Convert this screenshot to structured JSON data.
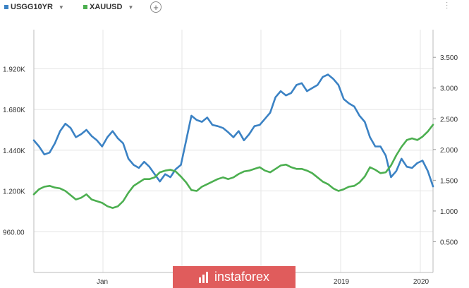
{
  "legend": {
    "series1": {
      "label": "USGG10YR",
      "color": "#3b82c4"
    },
    "series2": {
      "label": "XAUUSD",
      "color": "#4caf50"
    },
    "add_icon": "plus-circle-icon",
    "menu_icon": "vertical-dots-icon"
  },
  "watermark": {
    "text": "instaforex",
    "color": "#e05c5c"
  },
  "chart_data": {
    "type": "line",
    "x_tick_labels": [
      "Jan",
      "2019",
      "2020"
    ],
    "left_axis": {
      "series": "XAUUSD",
      "ticks": [
        "960.00",
        "1.200K",
        "1.440K",
        "1.680K",
        "1.920K"
      ],
      "values": [
        960,
        1200,
        1440,
        1680,
        1920
      ],
      "range": [
        720,
        2150
      ]
    },
    "right_axis": {
      "series": "USGG10YR",
      "ticks": [
        "0.500",
        "1.000",
        "1.500",
        "2.000",
        "2.500",
        "3.000",
        "3.500"
      ],
      "values": [
        0.5,
        1.0,
        1.5,
        2.0,
        2.5,
        3.0,
        3.5
      ],
      "range": [
        0.0,
        3.95
      ]
    },
    "grid": true,
    "series": [
      {
        "name": "USGG10YR",
        "axis": "right",
        "color": "#3b82c4",
        "values": [
          2.15,
          2.05,
          1.92,
          1.95,
          2.1,
          2.3,
          2.42,
          2.35,
          2.2,
          2.25,
          2.32,
          2.22,
          2.15,
          2.05,
          2.2,
          2.3,
          2.18,
          2.1,
          1.85,
          1.75,
          1.7,
          1.8,
          1.72,
          1.6,
          1.48,
          1.6,
          1.55,
          1.68,
          1.75,
          2.15,
          2.55,
          2.48,
          2.45,
          2.52,
          2.4,
          2.38,
          2.35,
          2.28,
          2.2,
          2.3,
          2.15,
          2.25,
          2.38,
          2.4,
          2.5,
          2.6,
          2.85,
          2.95,
          2.88,
          2.92,
          3.05,
          3.08,
          2.95,
          3.0,
          3.05,
          3.18,
          3.22,
          3.15,
          3.05,
          2.82,
          2.75,
          2.7,
          2.55,
          2.45,
          2.2,
          2.05,
          2.05,
          1.9,
          1.55,
          1.65,
          1.85,
          1.72,
          1.7,
          1.78,
          1.82,
          1.65,
          1.4
        ]
      },
      {
        "name": "XAUUSD",
        "axis": "left",
        "color": "#4caf50",
        "values": [
          1180,
          1210,
          1225,
          1230,
          1220,
          1215,
          1200,
          1175,
          1150,
          1160,
          1180,
          1150,
          1140,
          1130,
          1110,
          1100,
          1110,
          1140,
          1190,
          1230,
          1250,
          1270,
          1270,
          1280,
          1310,
          1320,
          1325,
          1315,
          1285,
          1250,
          1205,
          1200,
          1225,
          1240,
          1255,
          1270,
          1280,
          1270,
          1280,
          1300,
          1315,
          1320,
          1330,
          1340,
          1320,
          1310,
          1330,
          1350,
          1355,
          1340,
          1330,
          1330,
          1320,
          1305,
          1280,
          1255,
          1240,
          1215,
          1200,
          1210,
          1225,
          1230,
          1250,
          1285,
          1340,
          1325,
          1305,
          1310,
          1350,
          1410,
          1460,
          1500,
          1510,
          1500,
          1520,
          1550,
          1590
        ]
      }
    ]
  }
}
